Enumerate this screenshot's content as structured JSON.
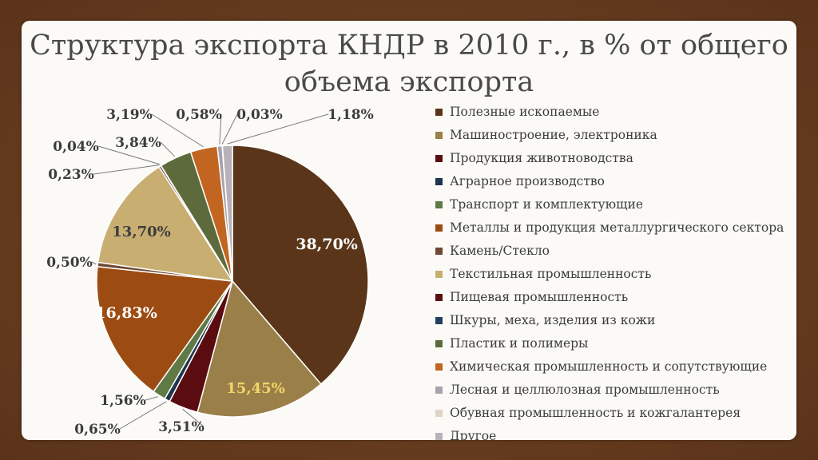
{
  "slide": {
    "title_line1": "Структура экспорта КНДР в 2010 г., в % от общего",
    "title_line2": "объема экспорта"
  },
  "chart_data": {
    "type": "pie",
    "title": "Структура экспорта КНДР в 2010 г., в % от общего объема экспорта",
    "slices": [
      {
        "label": "Полезные ископаемые",
        "value": 38.7,
        "value_label": "38,70%",
        "color": "#5a3519"
      },
      {
        "label": "Машиностроение, электроника",
        "value": 15.45,
        "value_label": "15,45%",
        "color": "#9a8048"
      },
      {
        "label": "Продукция животноводства",
        "value": 3.51,
        "value_label": "3,51%",
        "color": "#5a0c10"
      },
      {
        "label": "Аграрное производство",
        "value": 0.65,
        "value_label": "0,65%",
        "color": "#1e3550"
      },
      {
        "label": "Транспорт и комплектующие",
        "value": 1.56,
        "value_label": "1,56%",
        "color": "#5f7a45"
      },
      {
        "label": "Металлы и продукция металлургического сектора",
        "value": 16.83,
        "value_label": "16,83%",
        "color": "#9c4c12"
      },
      {
        "label": "Камень/Стекло",
        "value": 0.5,
        "value_label": "0,50%",
        "color": "#6e4a35"
      },
      {
        "label": "Текстильная промышленность",
        "value": 13.7,
        "value_label": "13,70%",
        "color": "#c9ae72"
      },
      {
        "label": "Пищевая промышленность",
        "value": 0.23,
        "value_label": "0,23%",
        "color": "#5a1010"
      },
      {
        "label": "Шкуры, меха, изделия из кожи",
        "value": 0.04,
        "value_label": "0,04%",
        "color": "#22405c"
      },
      {
        "label": "Пластик и полимеры",
        "value": 3.84,
        "value_label": "3,84%",
        "color": "#5d6b3c"
      },
      {
        "label": "Химическая промышленность и сопутствующие",
        "value": 3.19,
        "value_label": "3,19%",
        "color": "#c26520"
      },
      {
        "label": "Лесная и целлюлозная промышленность",
        "value": 0.58,
        "value_label": "0,58%",
        "color": "#a8a2ac"
      },
      {
        "label": "Обувная промышленность и кожгалантерея",
        "value": 0.03,
        "value_label": "0,03%",
        "color": "#ddd6c5"
      },
      {
        "label": "Другое",
        "value": 1.18,
        "value_label": "1,18%",
        "color": "#b8b2b8"
      }
    ]
  }
}
